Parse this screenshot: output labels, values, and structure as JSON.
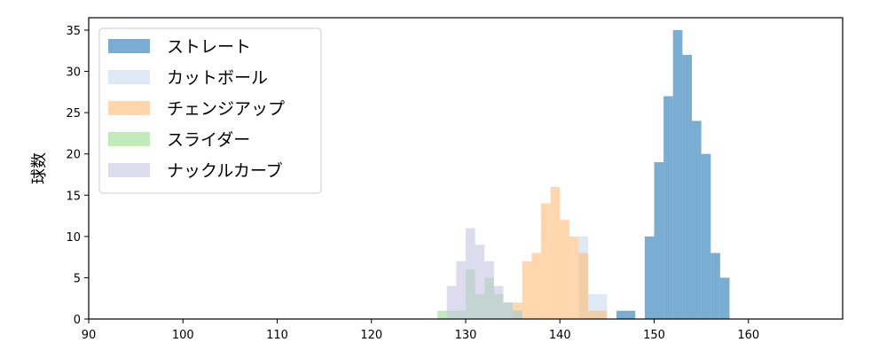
{
  "chart_data": {
    "type": "bar",
    "subtype": "overlaid-histogram",
    "ylabel": "球数",
    "xlabel": "",
    "xlim": [
      90,
      170
    ],
    "ylim": [
      0,
      36.5
    ],
    "x_ticks": [
      90,
      100,
      110,
      120,
      130,
      140,
      150,
      160
    ],
    "y_ticks": [
      0,
      5,
      10,
      15,
      20,
      25,
      30,
      35
    ],
    "bin_width": 1,
    "bar_opacity": 0.6,
    "grid": false,
    "legend": "top-left",
    "series": [
      {
        "name": "ストレート",
        "color": "#1f77b4",
        "bins": [
          [
            146,
            1
          ],
          [
            147,
            1
          ],
          [
            148,
            0
          ],
          [
            149,
            10
          ],
          [
            150,
            19
          ],
          [
            151,
            27
          ],
          [
            152,
            35
          ],
          [
            153,
            32
          ],
          [
            154,
            24
          ],
          [
            155,
            20
          ],
          [
            156,
            8
          ],
          [
            157,
            5
          ]
        ]
      },
      {
        "name": "カットボール",
        "color": "#c6dbef",
        "bins": [
          [
            142,
            10
          ],
          [
            143,
            3
          ],
          [
            144,
            3
          ]
        ]
      },
      {
        "name": "チェンジアップ",
        "color": "#ffbb78",
        "bins": [
          [
            135,
            2
          ],
          [
            136,
            7
          ],
          [
            137,
            8
          ],
          [
            138,
            14
          ],
          [
            139,
            16
          ],
          [
            140,
            12
          ],
          [
            141,
            10
          ],
          [
            142,
            8
          ],
          [
            143,
            1
          ],
          [
            144,
            1
          ]
        ]
      },
      {
        "name": "スライダー",
        "color": "#98df8a",
        "bins": [
          [
            127,
            1
          ],
          [
            128,
            1
          ],
          [
            129,
            1
          ],
          [
            130,
            6
          ],
          [
            131,
            3
          ],
          [
            132,
            5
          ],
          [
            133,
            3
          ],
          [
            134,
            2
          ],
          [
            135,
            1
          ]
        ]
      },
      {
        "name": "ナックルカーブ",
        "color": "#c5c5e3",
        "bins": [
          [
            128,
            4
          ],
          [
            129,
            7
          ],
          [
            130,
            11
          ],
          [
            131,
            9
          ],
          [
            132,
            7
          ],
          [
            133,
            4
          ],
          [
            134,
            2
          ],
          [
            135,
            1
          ]
        ]
      }
    ]
  }
}
